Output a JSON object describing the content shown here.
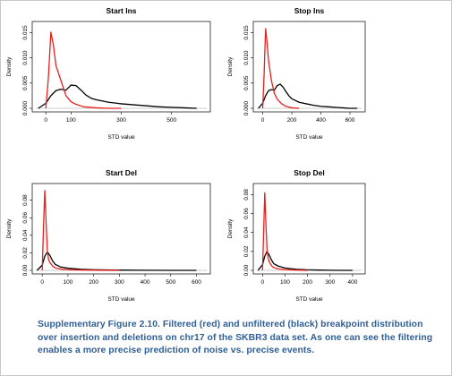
{
  "chart_data": [
    {
      "type": "line",
      "title": "Start Ins",
      "xlabel": "STD value",
      "ylabel": "Density",
      "xlim": [
        -40,
        640
      ],
      "ylim": [
        0,
        0.0165
      ],
      "xticks": [
        0,
        100,
        300,
        500
      ],
      "xtick_labels": [
        "0",
        "100",
        "300",
        "500"
      ],
      "yticks": [
        0,
        0.005,
        0.01,
        0.015
      ],
      "ytick_labels": [
        "0.000",
        "0.005",
        "0.010",
        "0.015"
      ],
      "zero_line": true,
      "series": [
        {
          "color": "#e8201c",
          "x": [
            0,
            10,
            20,
            30,
            40,
            50,
            60,
            70,
            80,
            100,
            120,
            150,
            200,
            250,
            300
          ],
          "y": [
            0.0,
            0.006,
            0.0151,
            0.0125,
            0.0085,
            0.007,
            0.0055,
            0.004,
            0.0025,
            0.0013,
            0.0008,
            0.0003,
            0.0001,
            0.0,
            0.0
          ]
        },
        {
          "color": "#000000",
          "x": [
            -30,
            0,
            20,
            40,
            60,
            80,
            100,
            120,
            140,
            160,
            180,
            200,
            250,
            300,
            350,
            400,
            450,
            500,
            550,
            600
          ],
          "y": [
            0.0,
            0.001,
            0.0025,
            0.0035,
            0.0038,
            0.0036,
            0.0046,
            0.0045,
            0.0036,
            0.0026,
            0.002,
            0.0017,
            0.0012,
            0.0009,
            0.0007,
            0.0005,
            0.0003,
            0.0002,
            0.0001,
            0.0
          ]
        }
      ]
    },
    {
      "type": "line",
      "title": "Stop Ins",
      "xlabel": "STD value",
      "ylabel": "Density",
      "xlim": [
        -40,
        680
      ],
      "ylim": [
        0,
        0.0165
      ],
      "xticks": [
        0,
        200,
        400,
        600
      ],
      "xtick_labels": [
        "0",
        "200",
        "400",
        "600"
      ],
      "yticks": [
        0,
        0.005,
        0.01,
        0.015
      ],
      "ytick_labels": [
        "0.000",
        "0.005",
        "0.010",
        "0.015"
      ],
      "zero_line": true,
      "series": [
        {
          "color": "#e8201c",
          "x": [
            0,
            10,
            20,
            30,
            40,
            50,
            60,
            80,
            100,
            130,
            160,
            200,
            250
          ],
          "y": [
            0.0,
            0.007,
            0.0158,
            0.013,
            0.0095,
            0.0075,
            0.0055,
            0.003,
            0.0018,
            0.0009,
            0.0004,
            0.0001,
            0.0
          ]
        },
        {
          "color": "#000000",
          "x": [
            -30,
            0,
            20,
            40,
            60,
            80,
            100,
            120,
            140,
            160,
            180,
            200,
            250,
            300,
            350,
            400,
            450,
            500,
            550,
            600,
            650
          ],
          "y": [
            0.0,
            0.001,
            0.0025,
            0.0035,
            0.0037,
            0.0036,
            0.0045,
            0.0048,
            0.0042,
            0.0033,
            0.0025,
            0.0019,
            0.0012,
            0.0009,
            0.0006,
            0.0004,
            0.0003,
            0.0002,
            0.0001,
            0.0,
            0.0
          ]
        }
      ]
    },
    {
      "type": "line",
      "title": "Start Del",
      "xlabel": "STD value",
      "ylabel": "Density",
      "xlim": [
        -25,
        640
      ],
      "ylim": [
        0,
        0.095
      ],
      "xticks": [
        0,
        100,
        200,
        300,
        400,
        500,
        600
      ],
      "xtick_labels": [
        "0",
        "100",
        "200",
        "300",
        "400",
        "500",
        "600"
      ],
      "yticks": [
        0,
        0.02,
        0.04,
        0.06,
        0.08
      ],
      "ytick_labels": [
        "0.00",
        "0.02",
        "0.04",
        "0.06",
        "0.08"
      ],
      "zero_line": true,
      "series": [
        {
          "color": "#e8201c",
          "x": [
            0,
            5,
            10,
            15,
            20,
            25,
            30,
            40,
            50,
            60,
            80,
            100,
            150,
            200,
            300
          ],
          "y": [
            0.0,
            0.05,
            0.091,
            0.055,
            0.022,
            0.012,
            0.009,
            0.005,
            0.003,
            0.002,
            0.0012,
            0.0008,
            0.0004,
            0.0002,
            0.0
          ]
        },
        {
          "color": "#000000",
          "x": [
            -20,
            0,
            10,
            20,
            30,
            40,
            50,
            70,
            100,
            150,
            200,
            300,
            400,
            500,
            600
          ],
          "y": [
            0.0,
            0.006,
            0.016,
            0.021,
            0.017,
            0.011,
            0.007,
            0.004,
            0.0025,
            0.0012,
            0.0007,
            0.0003,
            0.0001,
            0.0,
            0.0
          ]
        }
      ]
    },
    {
      "type": "line",
      "title": "Stop Del",
      "xlabel": "STD value",
      "ylabel": "Density",
      "xlim": [
        -25,
        440
      ],
      "ylim": [
        0,
        0.088
      ],
      "xticks": [
        0,
        100,
        200,
        300,
        400
      ],
      "xtick_labels": [
        "0",
        "100",
        "200",
        "300",
        "400"
      ],
      "yticks": [
        0,
        0.02,
        0.04,
        0.06,
        0.08
      ],
      "ytick_labels": [
        "0.00",
        "0.02",
        "0.04",
        "0.06",
        "0.08"
      ],
      "zero_line": true,
      "series": [
        {
          "color": "#e8201c",
          "x": [
            0,
            5,
            10,
            15,
            20,
            25,
            30,
            40,
            50,
            70,
            100,
            150,
            200
          ],
          "y": [
            0.0,
            0.04,
            0.082,
            0.05,
            0.022,
            0.013,
            0.009,
            0.005,
            0.003,
            0.0015,
            0.0008,
            0.0003,
            0.0
          ]
        },
        {
          "color": "#000000",
          "x": [
            -20,
            0,
            10,
            20,
            30,
            40,
            50,
            70,
            100,
            150,
            200,
            250,
            300,
            350,
            400
          ],
          "y": [
            0.0,
            0.006,
            0.015,
            0.02,
            0.016,
            0.011,
            0.007,
            0.0045,
            0.0025,
            0.0012,
            0.0006,
            0.0003,
            0.0001,
            0.0,
            0.0
          ]
        }
      ]
    }
  ],
  "caption": {
    "line1": "Supplementary Figure 2.10. Filtered (red) and unfiltered (black) breakpoint distribution",
    "line2": "over insertion and deletions on chr17 of the SKBR3 data set. As one can see the filtering",
    "line3": "enables a more precise prediction of noise vs. precise events."
  }
}
